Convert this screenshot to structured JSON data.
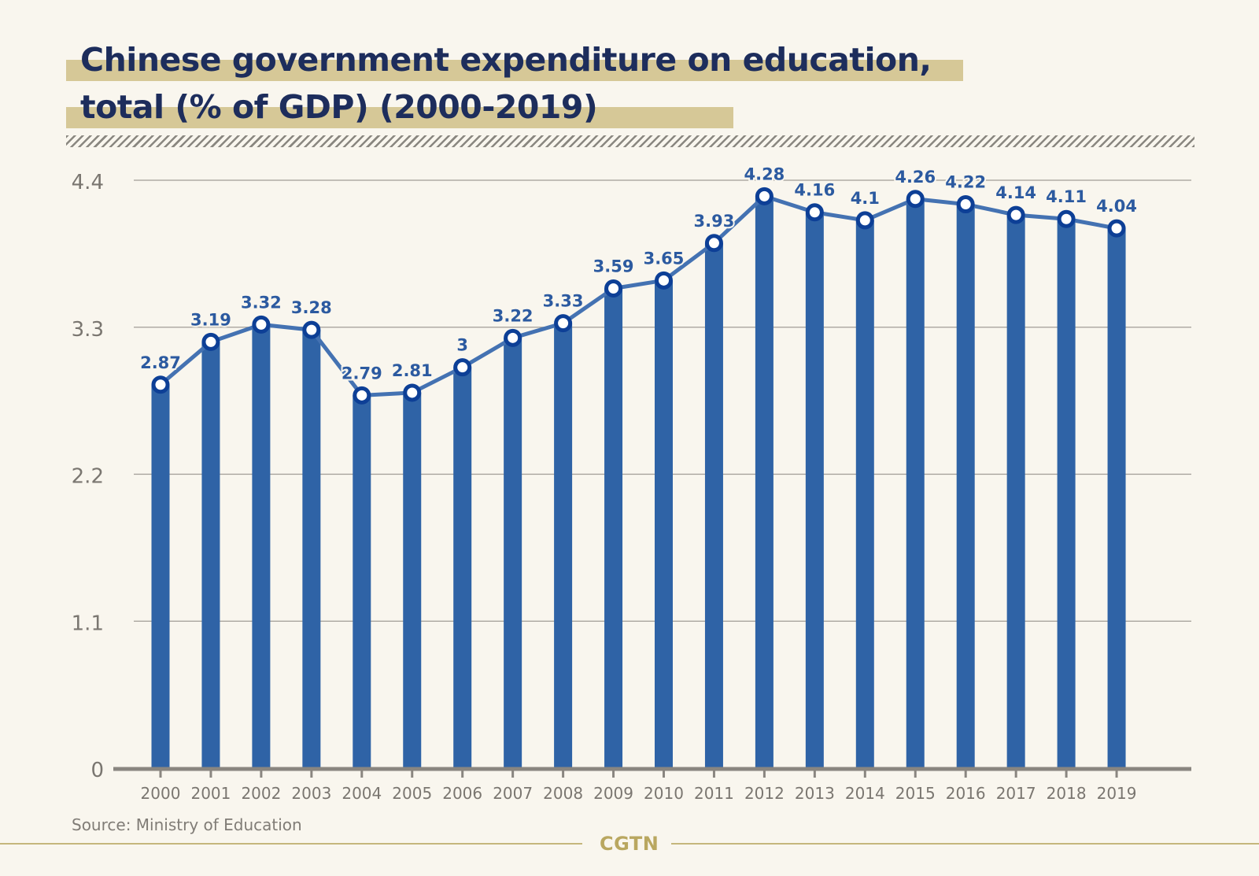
{
  "header": {
    "title_line_1": "Chinese government expenditure on education,",
    "title_line_2": "total (% of GDP) (2000-2019)"
  },
  "footer": {
    "source": "Source: Ministry of Education",
    "logo": "CGTN"
  },
  "colors": {
    "background": "#f9f6ee",
    "title_text": "#1d2d5c",
    "title_highlight": "#d6c897",
    "bar": "#2f63a6",
    "line": "#4472b2",
    "marker_ring": "#0d3f96",
    "marker_fill": "#ffffff",
    "data_label": "#2c5aa0",
    "axis": "#8a8680",
    "grid": "#a19d96",
    "tick_label": "#7a7670",
    "brand": "#b9a760"
  },
  "chart_data": {
    "type": "bar",
    "overlay": "line",
    "title": "Chinese government expenditure on education, total (% of GDP) (2000-2019)",
    "xlabel": "",
    "ylabel": "",
    "categories": [
      "2000",
      "2001",
      "2002",
      "2003",
      "2004",
      "2005",
      "2006",
      "2007",
      "2008",
      "2009",
      "2010",
      "2011",
      "2012",
      "2013",
      "2014",
      "2015",
      "2016",
      "2017",
      "2018",
      "2019"
    ],
    "values": [
      2.87,
      3.19,
      3.32,
      3.28,
      2.79,
      2.81,
      3,
      3.22,
      3.33,
      3.59,
      3.65,
      3.93,
      4.28,
      4.16,
      4.1,
      4.26,
      4.22,
      4.14,
      4.11,
      4.04
    ],
    "data_labels": [
      "2.87",
      "3.19",
      "3.32",
      "3.28",
      "2.79",
      "2.81",
      "3",
      "3.22",
      "3.33",
      "3.59",
      "3.65",
      "3.93",
      "4.28",
      "4.16",
      "4.1",
      "4.26",
      "4.22",
      "4.14",
      "4.11",
      "4.04"
    ],
    "ylim": [
      0,
      4.4
    ],
    "yticks": [
      0,
      1.1,
      2.2,
      3.3,
      4.4
    ],
    "ytick_labels": [
      "0",
      "1.1",
      "2.2",
      "3.3",
      "4.4"
    ],
    "grid": true,
    "legend": "none",
    "source": "Ministry of Education"
  }
}
